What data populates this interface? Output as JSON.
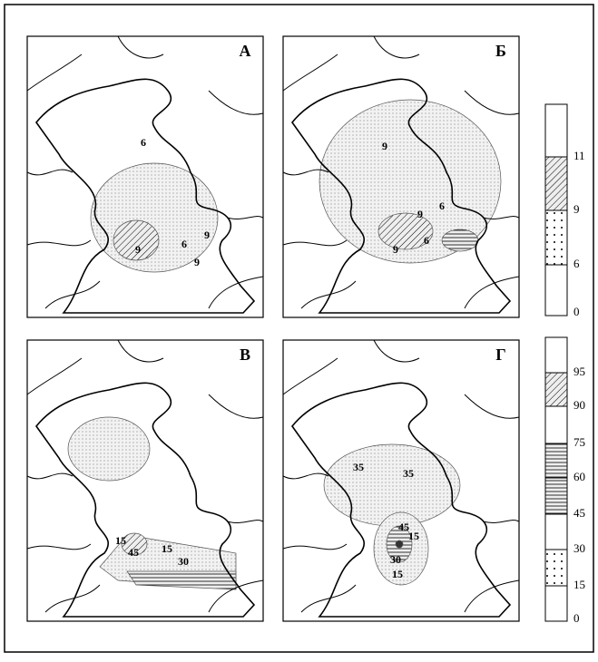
{
  "panels": [
    {
      "letter": "А",
      "contour_labels": [
        6,
        9,
        6,
        9,
        9
      ]
    },
    {
      "letter": "Б",
      "contour_labels": [
        9,
        6,
        9,
        9,
        6
      ]
    },
    {
      "letter": "В",
      "contour_labels": [
        15,
        45,
        15,
        30
      ]
    },
    {
      "letter": "Г",
      "contour_labels": [
        35,
        35,
        45,
        15,
        30,
        15
      ]
    }
  ],
  "legends": [
    {
      "ticks": [
        0,
        6,
        9,
        11
      ]
    },
    {
      "ticks": [
        0,
        15,
        30,
        45,
        60,
        75,
        90,
        95
      ]
    }
  ]
}
